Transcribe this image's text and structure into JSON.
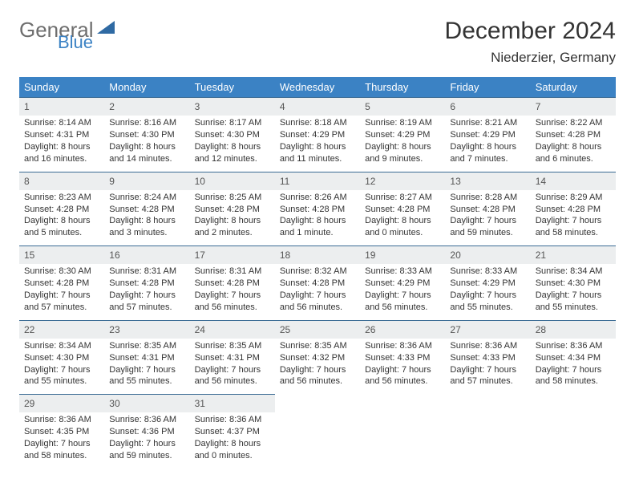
{
  "brand": {
    "word1": "General",
    "word2": "Blue",
    "text_color": "#6e6e6e",
    "accent_color": "#3b82c4"
  },
  "title": "December 2024",
  "subtitle": "Niederzier, Germany",
  "colors": {
    "header_bg": "#3b82c4",
    "header_fg": "#ffffff",
    "daynum_bg": "#eceeef",
    "rule": "#3b6b94",
    "text": "#333333"
  },
  "days": [
    "Sunday",
    "Monday",
    "Tuesday",
    "Wednesday",
    "Thursday",
    "Friday",
    "Saturday"
  ],
  "weeks": [
    [
      {
        "n": "1",
        "l1": "Sunrise: 8:14 AM",
        "l2": "Sunset: 4:31 PM",
        "l3": "Daylight: 8 hours",
        "l4": "and 16 minutes."
      },
      {
        "n": "2",
        "l1": "Sunrise: 8:16 AM",
        "l2": "Sunset: 4:30 PM",
        "l3": "Daylight: 8 hours",
        "l4": "and 14 minutes."
      },
      {
        "n": "3",
        "l1": "Sunrise: 8:17 AM",
        "l2": "Sunset: 4:30 PM",
        "l3": "Daylight: 8 hours",
        "l4": "and 12 minutes."
      },
      {
        "n": "4",
        "l1": "Sunrise: 8:18 AM",
        "l2": "Sunset: 4:29 PM",
        "l3": "Daylight: 8 hours",
        "l4": "and 11 minutes."
      },
      {
        "n": "5",
        "l1": "Sunrise: 8:19 AM",
        "l2": "Sunset: 4:29 PM",
        "l3": "Daylight: 8 hours",
        "l4": "and 9 minutes."
      },
      {
        "n": "6",
        "l1": "Sunrise: 8:21 AM",
        "l2": "Sunset: 4:29 PM",
        "l3": "Daylight: 8 hours",
        "l4": "and 7 minutes."
      },
      {
        "n": "7",
        "l1": "Sunrise: 8:22 AM",
        "l2": "Sunset: 4:28 PM",
        "l3": "Daylight: 8 hours",
        "l4": "and 6 minutes."
      }
    ],
    [
      {
        "n": "8",
        "l1": "Sunrise: 8:23 AM",
        "l2": "Sunset: 4:28 PM",
        "l3": "Daylight: 8 hours",
        "l4": "and 5 minutes."
      },
      {
        "n": "9",
        "l1": "Sunrise: 8:24 AM",
        "l2": "Sunset: 4:28 PM",
        "l3": "Daylight: 8 hours",
        "l4": "and 3 minutes."
      },
      {
        "n": "10",
        "l1": "Sunrise: 8:25 AM",
        "l2": "Sunset: 4:28 PM",
        "l3": "Daylight: 8 hours",
        "l4": "and 2 minutes."
      },
      {
        "n": "11",
        "l1": "Sunrise: 8:26 AM",
        "l2": "Sunset: 4:28 PM",
        "l3": "Daylight: 8 hours",
        "l4": "and 1 minute."
      },
      {
        "n": "12",
        "l1": "Sunrise: 8:27 AM",
        "l2": "Sunset: 4:28 PM",
        "l3": "Daylight: 8 hours",
        "l4": "and 0 minutes."
      },
      {
        "n": "13",
        "l1": "Sunrise: 8:28 AM",
        "l2": "Sunset: 4:28 PM",
        "l3": "Daylight: 7 hours",
        "l4": "and 59 minutes."
      },
      {
        "n": "14",
        "l1": "Sunrise: 8:29 AM",
        "l2": "Sunset: 4:28 PM",
        "l3": "Daylight: 7 hours",
        "l4": "and 58 minutes."
      }
    ],
    [
      {
        "n": "15",
        "l1": "Sunrise: 8:30 AM",
        "l2": "Sunset: 4:28 PM",
        "l3": "Daylight: 7 hours",
        "l4": "and 57 minutes."
      },
      {
        "n": "16",
        "l1": "Sunrise: 8:31 AM",
        "l2": "Sunset: 4:28 PM",
        "l3": "Daylight: 7 hours",
        "l4": "and 57 minutes."
      },
      {
        "n": "17",
        "l1": "Sunrise: 8:31 AM",
        "l2": "Sunset: 4:28 PM",
        "l3": "Daylight: 7 hours",
        "l4": "and 56 minutes."
      },
      {
        "n": "18",
        "l1": "Sunrise: 8:32 AM",
        "l2": "Sunset: 4:28 PM",
        "l3": "Daylight: 7 hours",
        "l4": "and 56 minutes."
      },
      {
        "n": "19",
        "l1": "Sunrise: 8:33 AM",
        "l2": "Sunset: 4:29 PM",
        "l3": "Daylight: 7 hours",
        "l4": "and 56 minutes."
      },
      {
        "n": "20",
        "l1": "Sunrise: 8:33 AM",
        "l2": "Sunset: 4:29 PM",
        "l3": "Daylight: 7 hours",
        "l4": "and 55 minutes."
      },
      {
        "n": "21",
        "l1": "Sunrise: 8:34 AM",
        "l2": "Sunset: 4:30 PM",
        "l3": "Daylight: 7 hours",
        "l4": "and 55 minutes."
      }
    ],
    [
      {
        "n": "22",
        "l1": "Sunrise: 8:34 AM",
        "l2": "Sunset: 4:30 PM",
        "l3": "Daylight: 7 hours",
        "l4": "and 55 minutes."
      },
      {
        "n": "23",
        "l1": "Sunrise: 8:35 AM",
        "l2": "Sunset: 4:31 PM",
        "l3": "Daylight: 7 hours",
        "l4": "and 55 minutes."
      },
      {
        "n": "24",
        "l1": "Sunrise: 8:35 AM",
        "l2": "Sunset: 4:31 PM",
        "l3": "Daylight: 7 hours",
        "l4": "and 56 minutes."
      },
      {
        "n": "25",
        "l1": "Sunrise: 8:35 AM",
        "l2": "Sunset: 4:32 PM",
        "l3": "Daylight: 7 hours",
        "l4": "and 56 minutes."
      },
      {
        "n": "26",
        "l1": "Sunrise: 8:36 AM",
        "l2": "Sunset: 4:33 PM",
        "l3": "Daylight: 7 hours",
        "l4": "and 56 minutes."
      },
      {
        "n": "27",
        "l1": "Sunrise: 8:36 AM",
        "l2": "Sunset: 4:33 PM",
        "l3": "Daylight: 7 hours",
        "l4": "and 57 minutes."
      },
      {
        "n": "28",
        "l1": "Sunrise: 8:36 AM",
        "l2": "Sunset: 4:34 PM",
        "l3": "Daylight: 7 hours",
        "l4": "and 58 minutes."
      }
    ],
    [
      {
        "n": "29",
        "l1": "Sunrise: 8:36 AM",
        "l2": "Sunset: 4:35 PM",
        "l3": "Daylight: 7 hours",
        "l4": "and 58 minutes."
      },
      {
        "n": "30",
        "l1": "Sunrise: 8:36 AM",
        "l2": "Sunset: 4:36 PM",
        "l3": "Daylight: 7 hours",
        "l4": "and 59 minutes."
      },
      {
        "n": "31",
        "l1": "Sunrise: 8:36 AM",
        "l2": "Sunset: 4:37 PM",
        "l3": "Daylight: 8 hours",
        "l4": "and 0 minutes."
      },
      null,
      null,
      null,
      null
    ]
  ]
}
